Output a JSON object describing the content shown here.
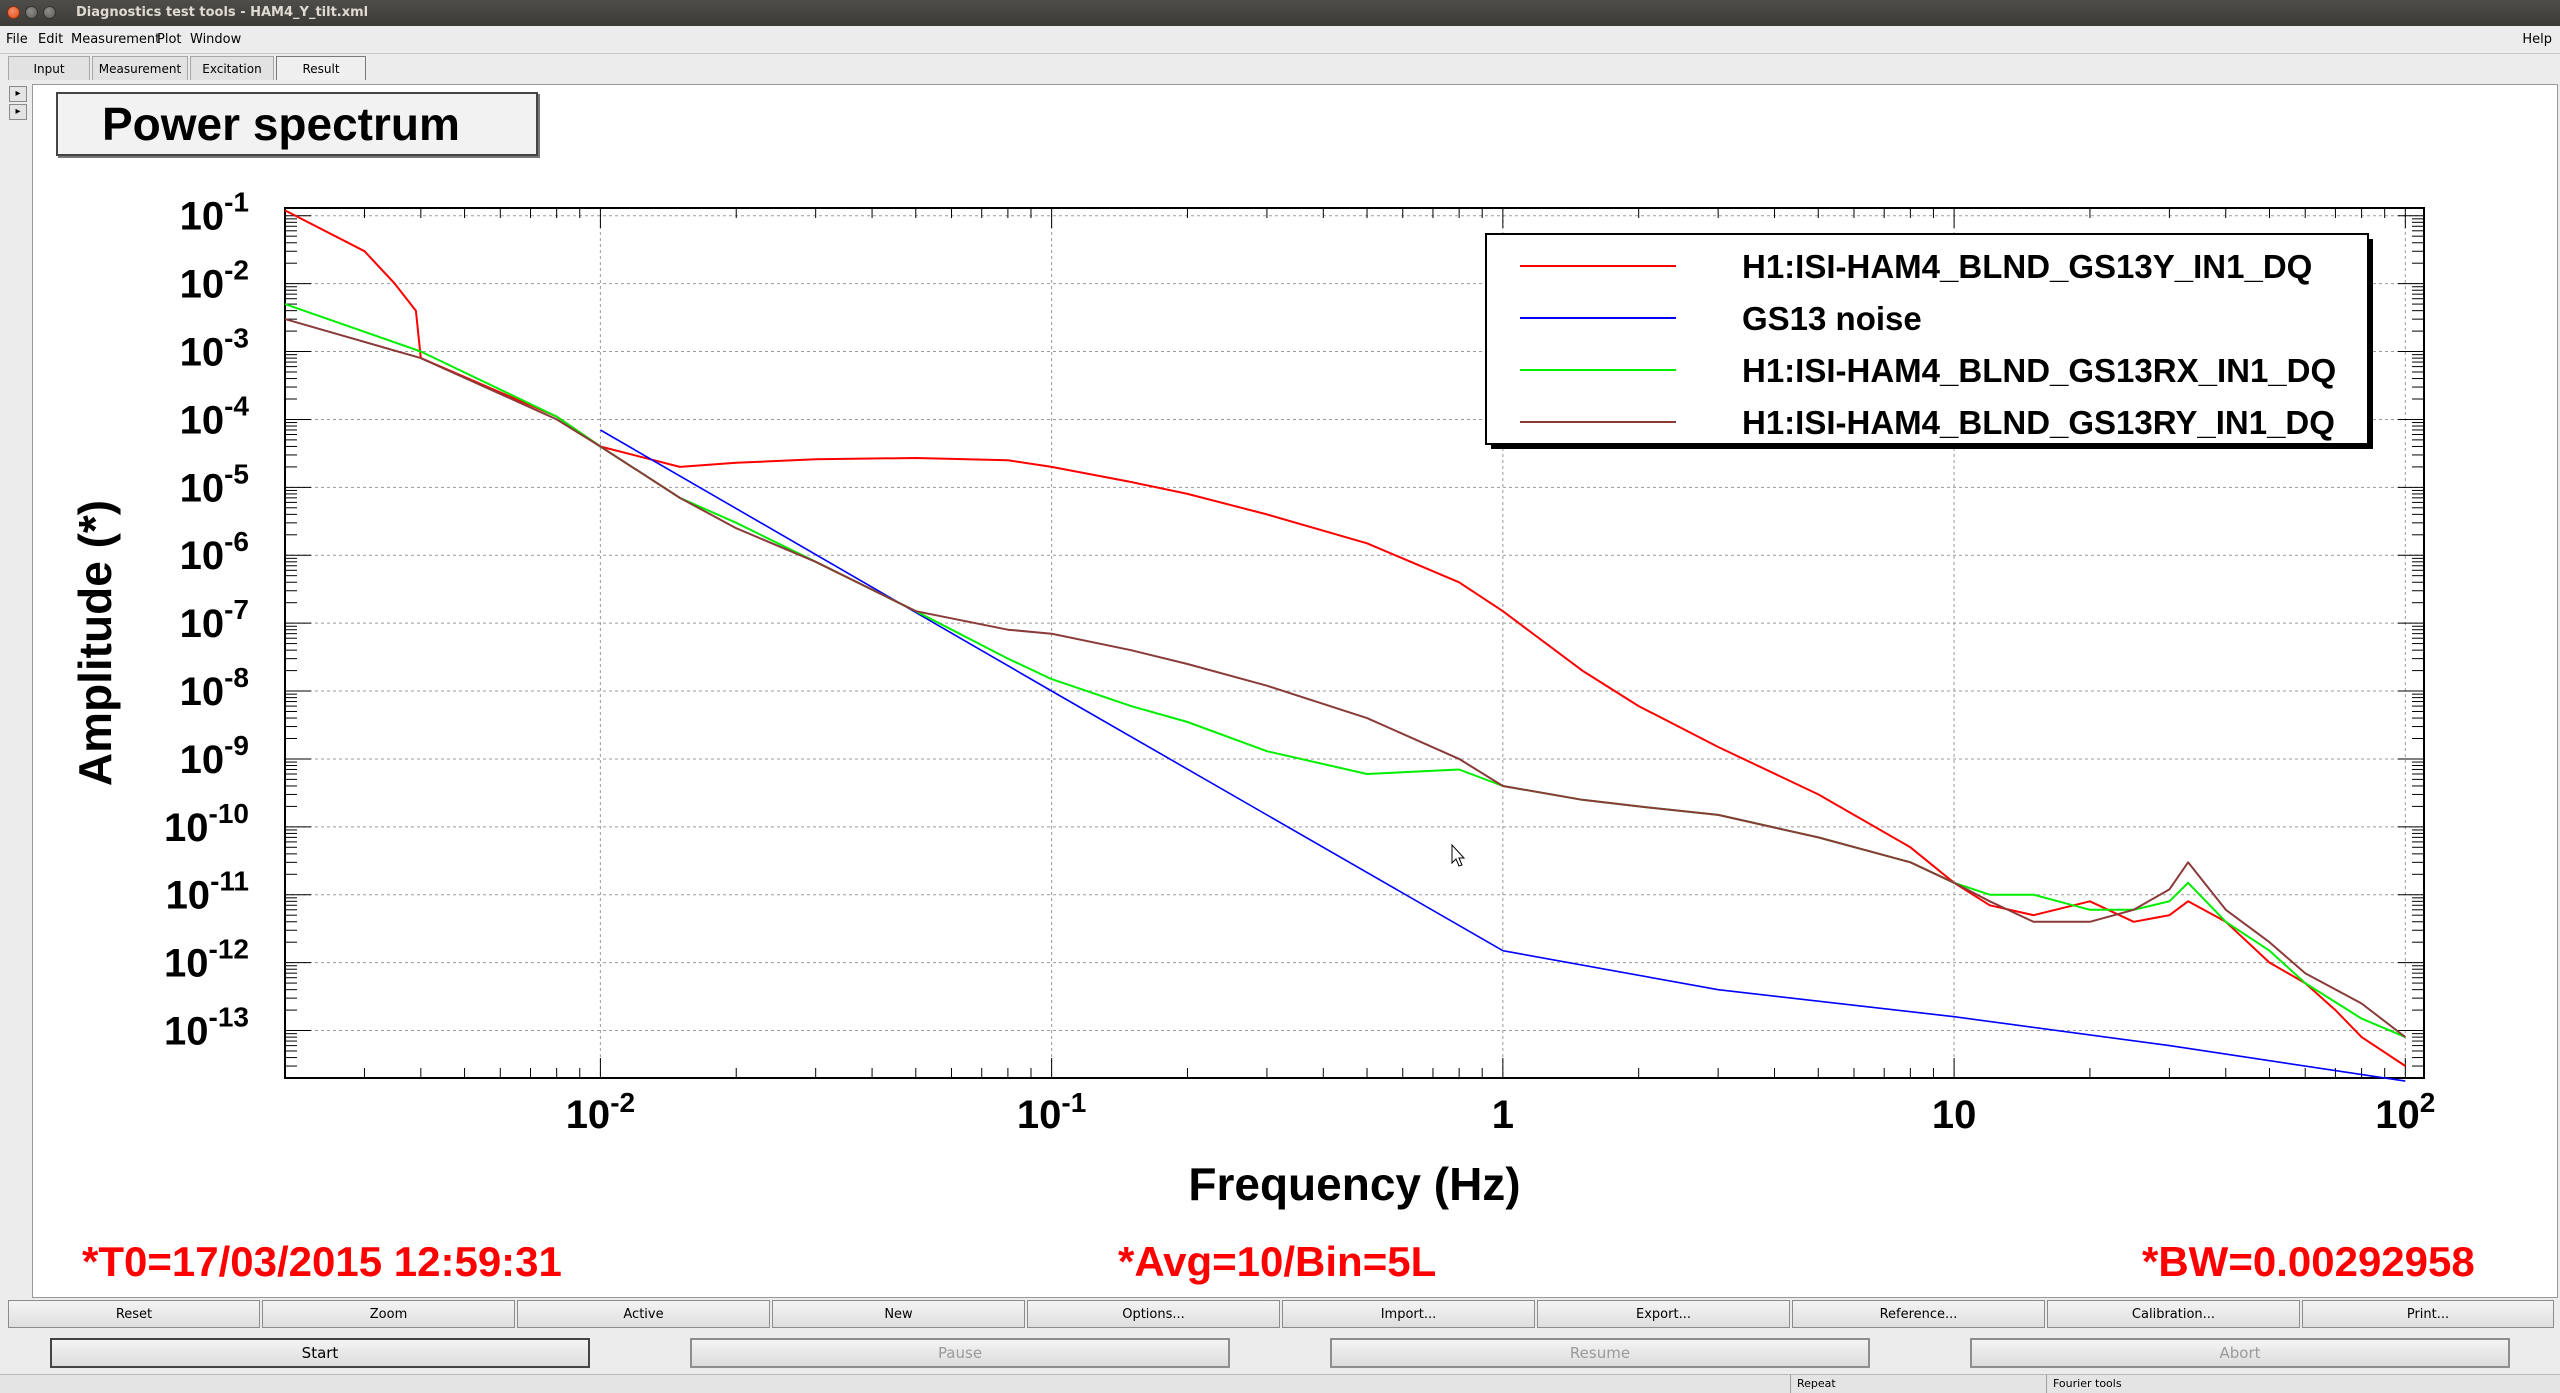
{
  "window": {
    "title": "Diagnostics test tools - HAM4_Y_tilt.xml"
  },
  "menu": {
    "items": [
      "File",
      "Edit",
      "Measurement",
      "Plot",
      "Window"
    ],
    "help": "Help"
  },
  "tabs": [
    "Input",
    "Measurement",
    "Excitation",
    "Result"
  ],
  "plot": {
    "title": "Power spectrum",
    "status_t0": "*T0=17/03/2015 12:59:31",
    "status_avg": "*Avg=10/Bin=5L",
    "status_bw": "*BW=0.00292958"
  },
  "chart_data": {
    "type": "line",
    "xlabel": "Frequency (Hz)",
    "ylabel": "Amplitude (*)",
    "xscale": "log",
    "yscale": "log",
    "xlim": [
      0.002,
      110
    ],
    "ylim": [
      2e-14,
      0.13
    ],
    "x_ticks": [
      "10^-2",
      "10^-1",
      "1",
      "10",
      "10^2"
    ],
    "y_ticks": [
      "10^-1",
      "10^-2",
      "10^-3",
      "10^-4",
      "10^-5",
      "10^-6",
      "10^-7",
      "10^-8",
      "10^-9",
      "10^-10",
      "10^-11",
      "10^-12",
      "10^-13"
    ],
    "grid": true,
    "legend_position": "top-right",
    "series": [
      {
        "name": "H1:ISI-HAM4_BLND_GS13Y_IN1_DQ",
        "color": "#ff0000",
        "x": [
          0.002,
          0.003,
          0.0035,
          0.0039,
          0.004,
          0.006,
          0.008,
          0.01,
          0.015,
          0.02,
          0.03,
          0.05,
          0.08,
          0.1,
          0.15,
          0.2,
          0.3,
          0.5,
          0.8,
          1,
          1.5,
          2,
          3,
          5,
          8,
          10,
          12,
          15,
          20,
          25,
          30,
          33,
          40,
          50,
          60,
          70,
          80,
          100
        ],
        "y": [
          0.12,
          0.03,
          0.01,
          0.004,
          0.0008,
          0.00025,
          0.00011,
          4e-05,
          2e-05,
          2.3e-05,
          2.6e-05,
          2.7e-05,
          2.5e-05,
          2e-05,
          1.2e-05,
          8e-06,
          4e-06,
          1.5e-06,
          4e-07,
          1.5e-07,
          2e-08,
          6e-09,
          1.5e-09,
          3e-10,
          5e-11,
          1.5e-11,
          7e-12,
          5e-12,
          8e-12,
          4e-12,
          5e-12,
          8e-12,
          4e-12,
          1e-12,
          5e-13,
          2e-13,
          8e-14,
          3e-14
        ]
      },
      {
        "name": "GS13 noise",
        "color": "#0000ff",
        "x": [
          0.01,
          0.1,
          1,
          3,
          10,
          30,
          100
        ],
        "y": [
          7e-05,
          1e-08,
          1.5e-12,
          4e-13,
          1.6e-13,
          6e-14,
          1.8e-14
        ]
      },
      {
        "name": "H1:ISI-HAM4_BLND_GS13RX_IN1_DQ",
        "color": "#00ee00",
        "x": [
          0.002,
          0.004,
          0.008,
          0.01,
          0.015,
          0.02,
          0.03,
          0.05,
          0.08,
          0.1,
          0.15,
          0.2,
          0.3,
          0.5,
          0.8,
          1,
          1.5,
          2,
          3,
          5,
          8,
          10,
          12,
          15,
          20,
          25,
          30,
          33,
          40,
          50,
          60,
          80,
          100
        ],
        "y": [
          0.005,
          0.001,
          0.00011,
          4e-05,
          7e-06,
          3e-06,
          8e-07,
          1.5e-07,
          3e-08,
          1.5e-08,
          6e-09,
          3.5e-09,
          1.3e-09,
          6e-10,
          7e-10,
          4e-10,
          2.5e-10,
          2e-10,
          1.5e-10,
          7e-11,
          3e-11,
          1.5e-11,
          1e-11,
          1e-11,
          6e-12,
          6e-12,
          8e-12,
          1.5e-11,
          4e-12,
          1.5e-12,
          5e-13,
          1.5e-13,
          8e-14
        ]
      },
      {
        "name": "H1:ISI-HAM4_BLND_GS13RY_IN1_DQ",
        "color": "#8b3a3a",
        "x": [
          0.002,
          0.004,
          0.008,
          0.01,
          0.015,
          0.02,
          0.03,
          0.05,
          0.08,
          0.1,
          0.15,
          0.2,
          0.3,
          0.5,
          0.8,
          1,
          1.5,
          2,
          3,
          5,
          8,
          10,
          12,
          15,
          20,
          25,
          30,
          33,
          40,
          50,
          60,
          80,
          100
        ],
        "y": [
          0.003,
          0.0008,
          0.0001,
          4e-05,
          7e-06,
          2.5e-06,
          8e-07,
          1.5e-07,
          8e-08,
          7e-08,
          4e-08,
          2.5e-08,
          1.2e-08,
          4e-09,
          1e-09,
          4e-10,
          2.5e-10,
          2e-10,
          1.5e-10,
          7e-11,
          3e-11,
          1.5e-11,
          8e-12,
          4e-12,
          4e-12,
          6e-12,
          1.2e-11,
          3e-11,
          6e-12,
          2e-12,
          7e-13,
          2.5e-13,
          8e-14
        ]
      }
    ]
  },
  "buttons_row1": [
    "Reset",
    "Zoom",
    "Active",
    "New",
    "Options...",
    "Import...",
    "Export...",
    "Reference...",
    "Calibration...",
    "Print..."
  ],
  "buttons_row2": [
    "Start",
    "Pause",
    "Resume",
    "Abort"
  ],
  "statusbar": [
    "Repeat",
    "Fourier tools"
  ]
}
